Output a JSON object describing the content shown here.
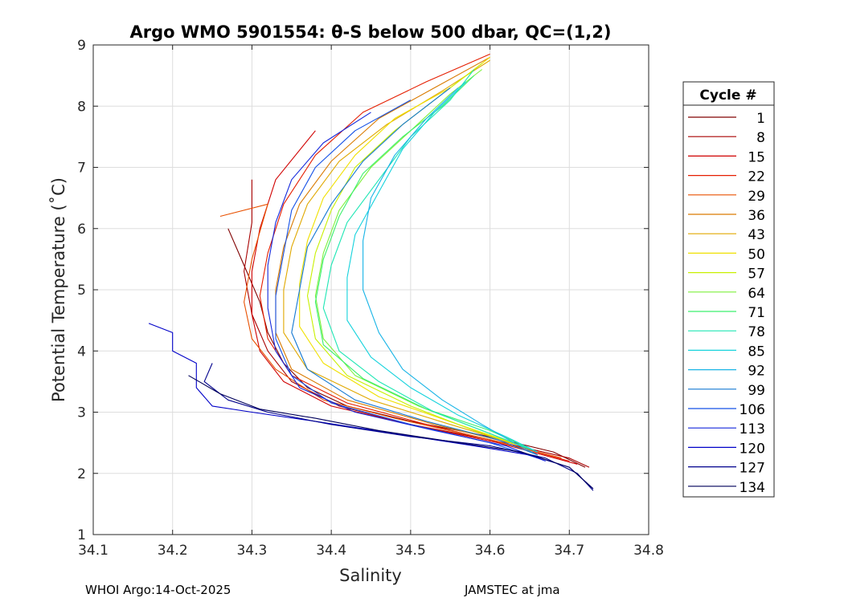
{
  "chart_data": {
    "type": "line",
    "title": "Argo WMO 5901554: θ-S below 500 dbar,  QC=(1,2)",
    "xlabel": "Salinity",
    "ylabel": "Potential Temperature (˚C)",
    "xlim": [
      34.1,
      34.8
    ],
    "ylim": [
      1,
      9
    ],
    "xticks": [
      "34.1",
      "34.2",
      "34.3",
      "34.4",
      "34.5",
      "34.6",
      "34.7",
      "34.8"
    ],
    "yticks": [
      "1",
      "2",
      "3",
      "4",
      "5",
      "6",
      "7",
      "8",
      "9"
    ],
    "grid": true,
    "legend": {
      "title": "Cycle #",
      "position": "right",
      "entries": [
        {
          "label": "1",
          "color": "#800000"
        },
        {
          "label": "8",
          "color": "#a80000"
        },
        {
          "label": "15",
          "color": "#d00000"
        },
        {
          "label": "22",
          "color": "#e51e00"
        },
        {
          "label": "29",
          "color": "#e85000"
        },
        {
          "label": "36",
          "color": "#d97a00"
        },
        {
          "label": "43",
          "color": "#e0a800"
        },
        {
          "label": "50",
          "color": "#f0e000"
        },
        {
          "label": "57",
          "color": "#c8f000"
        },
        {
          "label": "64",
          "color": "#7ef03c"
        },
        {
          "label": "71",
          "color": "#3cf06e"
        },
        {
          "label": "78",
          "color": "#1ee6b4"
        },
        {
          "label": "85",
          "color": "#14d2dc"
        },
        {
          "label": "92",
          "color": "#18b4e6"
        },
        {
          "label": "99",
          "color": "#1478d2"
        },
        {
          "label": "106",
          "color": "#1450e6"
        },
        {
          "label": "113",
          "color": "#1428dc"
        },
        {
          "label": "120",
          "color": "#0000c8"
        },
        {
          "label": "127",
          "color": "#00008c"
        },
        {
          "label": "134",
          "color": "#00005a"
        }
      ]
    },
    "series": [
      {
        "name": "1",
        "color": "#800000",
        "points": [
          [
            34.27,
            6.0
          ],
          [
            34.29,
            5.4
          ],
          [
            34.31,
            4.8
          ],
          [
            34.32,
            4.3
          ],
          [
            34.34,
            3.8
          ],
          [
            34.37,
            3.4
          ],
          [
            34.42,
            3.1
          ],
          [
            34.5,
            2.85
          ],
          [
            34.6,
            2.6
          ],
          [
            34.68,
            2.35
          ],
          [
            34.72,
            2.1
          ]
        ]
      },
      {
        "name": "8",
        "color": "#a80000",
        "points": [
          [
            34.3,
            6.8
          ],
          [
            34.3,
            6.1
          ],
          [
            34.29,
            5.3
          ],
          [
            34.3,
            4.6
          ],
          [
            34.32,
            4.0
          ],
          [
            34.35,
            3.5
          ],
          [
            34.41,
            3.1
          ],
          [
            34.5,
            2.8
          ],
          [
            34.6,
            2.55
          ],
          [
            34.7,
            2.25
          ],
          [
            34.725,
            2.1
          ]
        ]
      },
      {
        "name": "15",
        "color": "#d00000",
        "points": [
          [
            34.38,
            7.6
          ],
          [
            34.33,
            6.8
          ],
          [
            34.31,
            6.0
          ],
          [
            34.3,
            5.3
          ],
          [
            34.3,
            4.6
          ],
          [
            34.31,
            4.0
          ],
          [
            34.34,
            3.5
          ],
          [
            34.4,
            3.1
          ],
          [
            34.5,
            2.8
          ],
          [
            34.61,
            2.5
          ],
          [
            34.71,
            2.15
          ]
        ]
      },
      {
        "name": "22",
        "color": "#e51e00",
        "points": [
          [
            34.6,
            8.85
          ],
          [
            34.52,
            8.4
          ],
          [
            34.44,
            7.9
          ],
          [
            34.38,
            7.2
          ],
          [
            34.34,
            6.4
          ],
          [
            34.32,
            5.6
          ],
          [
            34.31,
            4.9
          ],
          [
            34.32,
            4.2
          ],
          [
            34.35,
            3.6
          ],
          [
            34.42,
            3.15
          ],
          [
            34.52,
            2.8
          ],
          [
            34.63,
            2.45
          ],
          [
            34.7,
            2.2
          ]
        ]
      },
      {
        "name": "29",
        "color": "#e85000",
        "points": [
          [
            34.26,
            6.2
          ],
          [
            34.32,
            6.4
          ],
          [
            34.3,
            5.5
          ],
          [
            34.29,
            4.8
          ],
          [
            34.3,
            4.2
          ],
          [
            34.33,
            3.7
          ],
          [
            34.39,
            3.2
          ],
          [
            34.48,
            2.9
          ],
          [
            34.6,
            2.55
          ],
          [
            34.69,
            2.25
          ]
        ]
      },
      {
        "name": "36",
        "color": "#d97a00",
        "points": [
          [
            34.6,
            8.8
          ],
          [
            34.53,
            8.3
          ],
          [
            34.46,
            7.8
          ],
          [
            34.4,
            7.1
          ],
          [
            34.36,
            6.4
          ],
          [
            34.34,
            5.7
          ],
          [
            34.33,
            5.0
          ],
          [
            34.33,
            4.3
          ],
          [
            34.35,
            3.7
          ],
          [
            34.42,
            3.2
          ],
          [
            34.53,
            2.8
          ],
          [
            34.64,
            2.45
          ]
        ]
      },
      {
        "name": "43",
        "color": "#e0a800",
        "points": [
          [
            34.6,
            8.75
          ],
          [
            34.54,
            8.25
          ],
          [
            34.47,
            7.7
          ],
          [
            34.41,
            7.1
          ],
          [
            34.37,
            6.4
          ],
          [
            34.35,
            5.7
          ],
          [
            34.34,
            5.0
          ],
          [
            34.34,
            4.3
          ],
          [
            34.37,
            3.7
          ],
          [
            34.45,
            3.2
          ],
          [
            34.55,
            2.8
          ],
          [
            34.64,
            2.45
          ]
        ]
      },
      {
        "name": "50",
        "color": "#f0e000",
        "points": [
          [
            34.6,
            8.8
          ],
          [
            34.55,
            8.3
          ],
          [
            34.48,
            7.8
          ],
          [
            34.43,
            7.2
          ],
          [
            34.39,
            6.5
          ],
          [
            34.37,
            5.8
          ],
          [
            34.36,
            5.1
          ],
          [
            34.36,
            4.4
          ],
          [
            34.39,
            3.8
          ],
          [
            34.46,
            3.25
          ],
          [
            34.56,
            2.8
          ],
          [
            34.64,
            2.45
          ]
        ]
      },
      {
        "name": "57",
        "color": "#c8f000",
        "points": [
          [
            34.59,
            8.7
          ],
          [
            34.54,
            8.2
          ],
          [
            34.48,
            7.6
          ],
          [
            34.43,
            7.0
          ],
          [
            34.4,
            6.3
          ],
          [
            34.38,
            5.6
          ],
          [
            34.37,
            4.9
          ],
          [
            34.38,
            4.2
          ],
          [
            34.42,
            3.6
          ],
          [
            34.5,
            3.1
          ],
          [
            34.58,
            2.7
          ],
          [
            34.65,
            2.4
          ]
        ]
      },
      {
        "name": "64",
        "color": "#7ef03c",
        "points": [
          [
            34.59,
            8.6
          ],
          [
            34.55,
            8.2
          ],
          [
            34.5,
            7.6
          ],
          [
            34.45,
            7.0
          ],
          [
            34.41,
            6.3
          ],
          [
            34.39,
            5.6
          ],
          [
            34.38,
            4.9
          ],
          [
            34.39,
            4.2
          ],
          [
            34.43,
            3.6
          ],
          [
            34.51,
            3.1
          ],
          [
            34.59,
            2.7
          ],
          [
            34.65,
            2.4
          ]
        ]
      },
      {
        "name": "71",
        "color": "#3cf06e",
        "points": [
          [
            34.58,
            8.5
          ],
          [
            34.54,
            8.0
          ],
          [
            34.49,
            7.5
          ],
          [
            34.44,
            6.9
          ],
          [
            34.41,
            6.2
          ],
          [
            34.39,
            5.5
          ],
          [
            34.38,
            4.8
          ],
          [
            34.39,
            4.1
          ],
          [
            34.44,
            3.55
          ],
          [
            34.52,
            3.05
          ],
          [
            34.6,
            2.7
          ],
          [
            34.66,
            2.35
          ]
        ]
      },
      {
        "name": "78",
        "color": "#1ee6b4",
        "points": [
          [
            34.58,
            8.6
          ],
          [
            34.55,
            8.1
          ],
          [
            34.5,
            7.5
          ],
          [
            34.46,
            6.8
          ],
          [
            34.42,
            6.1
          ],
          [
            34.4,
            5.4
          ],
          [
            34.39,
            4.7
          ],
          [
            34.41,
            4.0
          ],
          [
            34.46,
            3.5
          ],
          [
            34.53,
            3.0
          ],
          [
            34.6,
            2.65
          ],
          [
            34.66,
            2.35
          ]
        ]
      },
      {
        "name": "85",
        "color": "#14d2dc",
        "points": [
          [
            34.57,
            8.4
          ],
          [
            34.53,
            7.9
          ],
          [
            34.49,
            7.3
          ],
          [
            34.46,
            6.6
          ],
          [
            34.43,
            5.9
          ],
          [
            34.42,
            5.2
          ],
          [
            34.42,
            4.5
          ],
          [
            34.45,
            3.9
          ],
          [
            34.5,
            3.4
          ],
          [
            34.56,
            2.95
          ],
          [
            34.62,
            2.6
          ],
          [
            34.66,
            2.35
          ]
        ]
      },
      {
        "name": "92",
        "color": "#18b4e6",
        "points": [
          [
            34.56,
            8.3
          ],
          [
            34.52,
            7.8
          ],
          [
            34.48,
            7.2
          ],
          [
            34.45,
            6.5
          ],
          [
            34.44,
            5.8
          ],
          [
            34.44,
            5.0
          ],
          [
            34.46,
            4.3
          ],
          [
            34.49,
            3.7
          ],
          [
            34.54,
            3.2
          ],
          [
            34.59,
            2.8
          ],
          [
            34.63,
            2.5
          ],
          [
            34.66,
            2.3
          ]
        ]
      },
      {
        "name": "99",
        "color": "#1478d2",
        "points": [
          [
            34.55,
            8.3
          ],
          [
            34.49,
            7.7
          ],
          [
            34.44,
            7.1
          ],
          [
            34.4,
            6.4
          ],
          [
            34.37,
            5.7
          ],
          [
            34.36,
            5.0
          ],
          [
            34.35,
            4.3
          ],
          [
            34.37,
            3.7
          ],
          [
            34.43,
            3.2
          ],
          [
            34.52,
            2.85
          ],
          [
            34.61,
            2.55
          ],
          [
            34.66,
            2.3
          ]
        ]
      },
      {
        "name": "106",
        "color": "#1450e6",
        "points": [
          [
            34.5,
            8.1
          ],
          [
            34.43,
            7.6
          ],
          [
            34.38,
            7.0
          ],
          [
            34.35,
            6.3
          ],
          [
            34.34,
            5.6
          ],
          [
            34.33,
            4.9
          ],
          [
            34.33,
            4.2
          ],
          [
            34.35,
            3.6
          ],
          [
            34.4,
            3.15
          ],
          [
            34.5,
            2.8
          ],
          [
            34.6,
            2.5
          ],
          [
            34.66,
            2.25
          ]
        ]
      },
      {
        "name": "113",
        "color": "#1428dc",
        "points": [
          [
            34.45,
            7.9
          ],
          [
            34.39,
            7.4
          ],
          [
            34.35,
            6.8
          ],
          [
            34.33,
            6.1
          ],
          [
            34.32,
            5.4
          ],
          [
            34.32,
            4.7
          ],
          [
            34.33,
            4.0
          ],
          [
            34.36,
            3.4
          ],
          [
            34.43,
            3.0
          ],
          [
            34.53,
            2.7
          ],
          [
            34.62,
            2.45
          ],
          [
            34.67,
            2.2
          ]
        ]
      },
      {
        "name": "120",
        "color": "#0000c8",
        "points": [
          [
            34.17,
            4.45
          ],
          [
            34.2,
            4.3
          ],
          [
            34.2,
            4.0
          ],
          [
            34.23,
            3.8
          ],
          [
            34.23,
            3.4
          ],
          [
            34.25,
            3.1
          ],
          [
            34.3,
            3.0
          ],
          [
            34.38,
            2.85
          ],
          [
            34.48,
            2.65
          ],
          [
            34.58,
            2.45
          ],
          [
            34.65,
            2.3
          ],
          [
            34.7,
            2.1
          ],
          [
            34.73,
            1.75
          ]
        ]
      },
      {
        "name": "127",
        "color": "#00008c",
        "points": [
          [
            34.25,
            3.8
          ],
          [
            34.24,
            3.5
          ],
          [
            34.27,
            3.2
          ],
          [
            34.32,
            3.0
          ],
          [
            34.4,
            2.8
          ],
          [
            34.5,
            2.6
          ],
          [
            34.6,
            2.45
          ],
          [
            34.67,
            2.25
          ],
          [
            34.71,
            2.0
          ],
          [
            34.73,
            1.72
          ]
        ]
      },
      {
        "name": "134",
        "color": "#00005a",
        "points": [
          [
            34.22,
            3.6
          ],
          [
            34.26,
            3.3
          ],
          [
            34.31,
            3.05
          ],
          [
            34.38,
            2.9
          ],
          [
            34.46,
            2.7
          ],
          [
            34.56,
            2.5
          ],
          [
            34.64,
            2.35
          ],
          [
            34.7,
            2.1
          ],
          [
            34.73,
            1.75
          ]
        ]
      }
    ]
  },
  "footer": {
    "left": "WHOI Argo:14-Oct-2025",
    "right": "JAMSTEC at jma"
  }
}
